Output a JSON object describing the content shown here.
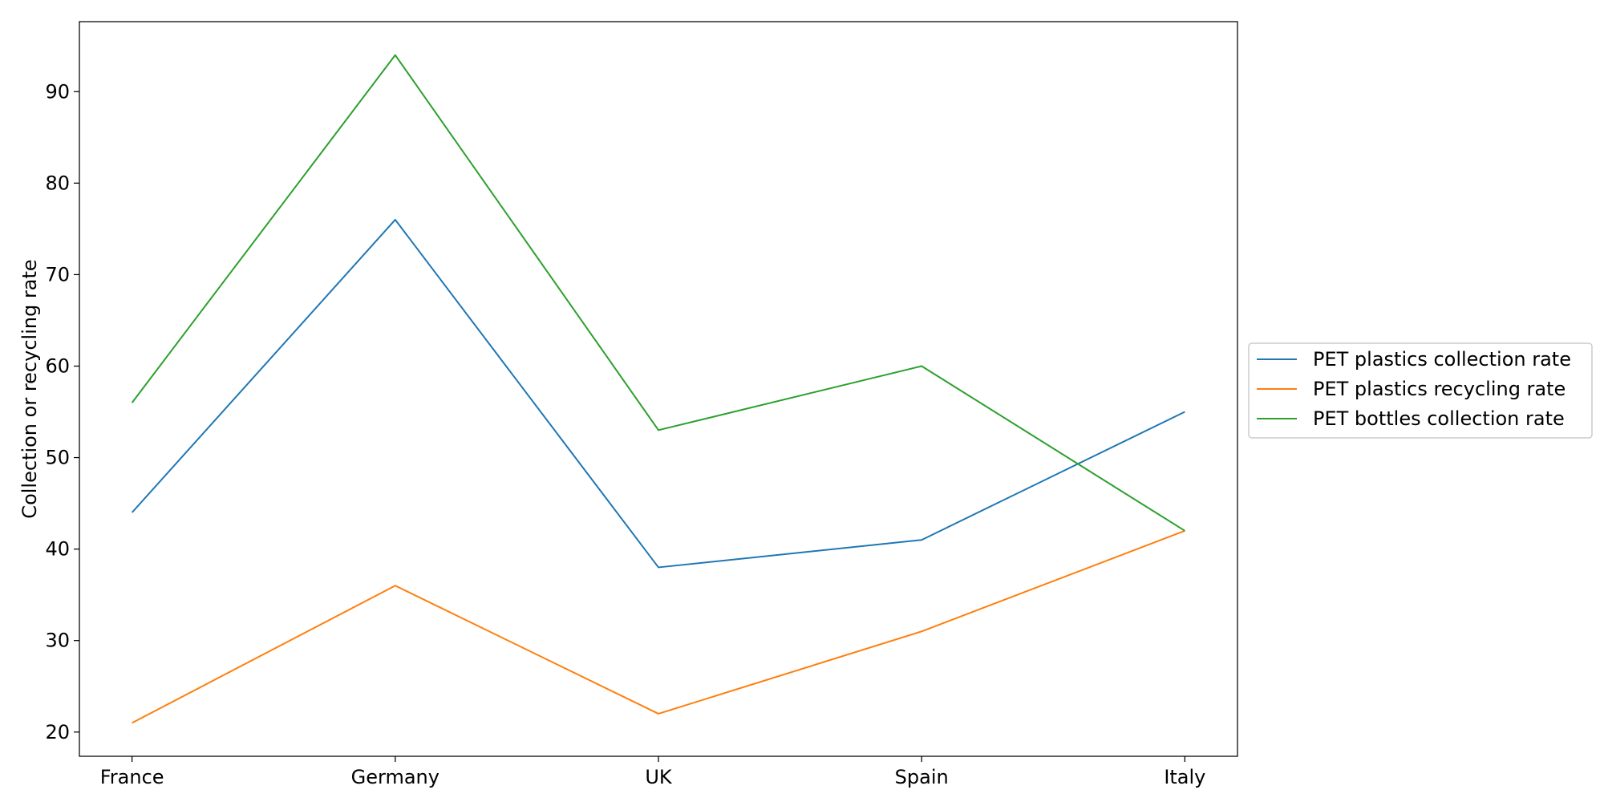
{
  "chart_data": {
    "type": "line",
    "categories": [
      "France",
      "Germany",
      "UK",
      "Spain",
      "Italy"
    ],
    "series": [
      {
        "name": "PET plastics collection rate",
        "values": [
          44,
          76,
          38,
          41,
          55
        ],
        "color": "#1f77b4"
      },
      {
        "name": "PET plastics recycling rate",
        "values": [
          21,
          36,
          22,
          31,
          42
        ],
        "color": "#ff7f0e"
      },
      {
        "name": "PET bottles collection rate",
        "values": [
          56,
          94,
          53,
          60,
          42
        ],
        "color": "#2ca02c"
      }
    ],
    "title": "",
    "xlabel": "",
    "ylabel": "Collection or recycling rate",
    "ylim": [
      17.35,
      97.65
    ],
    "yticks": [
      20,
      30,
      40,
      50,
      60,
      70,
      80,
      90
    ],
    "grid": false,
    "legend_position": "center-right outside"
  }
}
